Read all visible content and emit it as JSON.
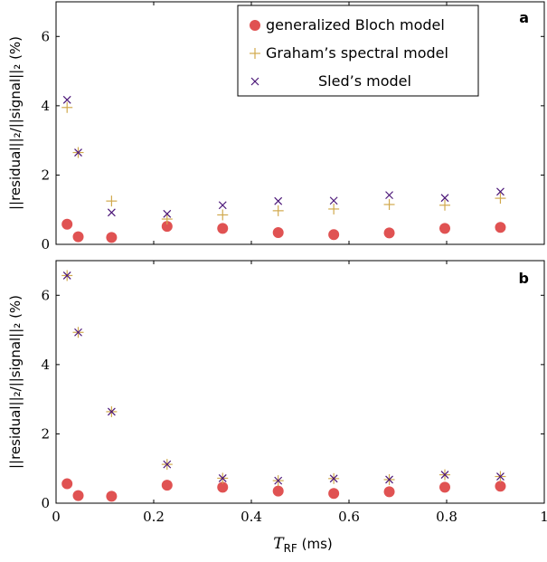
{
  "chart_data": [
    {
      "type": "scatter",
      "panel_label": "a",
      "ylabel": "||residual||₂/||signal||₂ (%)",
      "xlim": [
        0,
        1
      ],
      "ylim": [
        0,
        7
      ],
      "yticks": [
        0,
        2,
        4,
        6
      ],
      "legend_position": "top-right",
      "series": [
        {
          "name": "generalized Bloch model",
          "marker": "circle",
          "color": "#e05252",
          "x": [
            0.0226,
            0.0454,
            0.1137,
            0.2274,
            0.3412,
            0.455,
            0.5688,
            0.6825,
            0.7963,
            0.9101
          ],
          "y": [
            0.58,
            0.22,
            0.2,
            0.52,
            0.46,
            0.34,
            0.28,
            0.33,
            0.46,
            0.49
          ]
        },
        {
          "name": "Graham’s spectral model",
          "marker": "plus",
          "color": "#d1a94d",
          "x": [
            0.0226,
            0.0454,
            0.1137,
            0.2274,
            0.3412,
            0.455,
            0.5688,
            0.6825,
            0.7963,
            0.9101
          ],
          "y": [
            3.95,
            2.65,
            1.25,
            0.73,
            0.85,
            0.97,
            1.02,
            1.15,
            1.13,
            1.33
          ]
        },
        {
          "name": "Sled’s model",
          "marker": "cross",
          "color": "#4b1678",
          "x": [
            0.0226,
            0.0454,
            0.1137,
            0.2274,
            0.3412,
            0.455,
            0.5688,
            0.6825,
            0.7963,
            0.9101
          ],
          "y": [
            4.17,
            2.65,
            0.92,
            0.88,
            1.13,
            1.25,
            1.26,
            1.42,
            1.34,
            1.52
          ]
        }
      ]
    },
    {
      "type": "scatter",
      "panel_label": "b",
      "ylabel": "||residual||₂/||signal||₂ (%)",
      "xlabel_main": "T",
      "xlabel_sub": "RF",
      "xlabel_unit": " (ms)",
      "xlim": [
        0,
        1
      ],
      "ylim": [
        0,
        7
      ],
      "xticks": [
        "0",
        "0.2",
        "0.4",
        "0.6",
        "0.8",
        "1"
      ],
      "xtick_values": [
        0,
        0.2,
        0.4,
        0.6,
        0.8,
        1
      ],
      "yticks": [
        0,
        2,
        4,
        6
      ],
      "series": [
        {
          "marker": "circle",
          "color": "#e05252",
          "x": [
            0.0226,
            0.0454,
            0.1137,
            0.2274,
            0.3412,
            0.455,
            0.5688,
            0.6825,
            0.7963,
            0.9101
          ],
          "y": [
            0.56,
            0.22,
            0.2,
            0.52,
            0.46,
            0.35,
            0.28,
            0.33,
            0.46,
            0.49
          ]
        },
        {
          "marker": "plus",
          "color": "#d1a94d",
          "x": [
            0.0226,
            0.0454,
            0.1137,
            0.2274,
            0.3412,
            0.455,
            0.5688,
            0.6825,
            0.7963,
            0.9101
          ],
          "y": [
            6.57,
            4.93,
            2.64,
            1.12,
            0.72,
            0.65,
            0.71,
            0.68,
            0.82,
            0.77
          ]
        },
        {
          "marker": "cross",
          "color": "#4b1678",
          "x": [
            0.0226,
            0.0454,
            0.1137,
            0.2274,
            0.3412,
            0.455,
            0.5688,
            0.6825,
            0.7963,
            0.9101
          ],
          "y": [
            6.57,
            4.93,
            2.64,
            1.12,
            0.72,
            0.65,
            0.71,
            0.68,
            0.82,
            0.77
          ]
        }
      ]
    }
  ]
}
